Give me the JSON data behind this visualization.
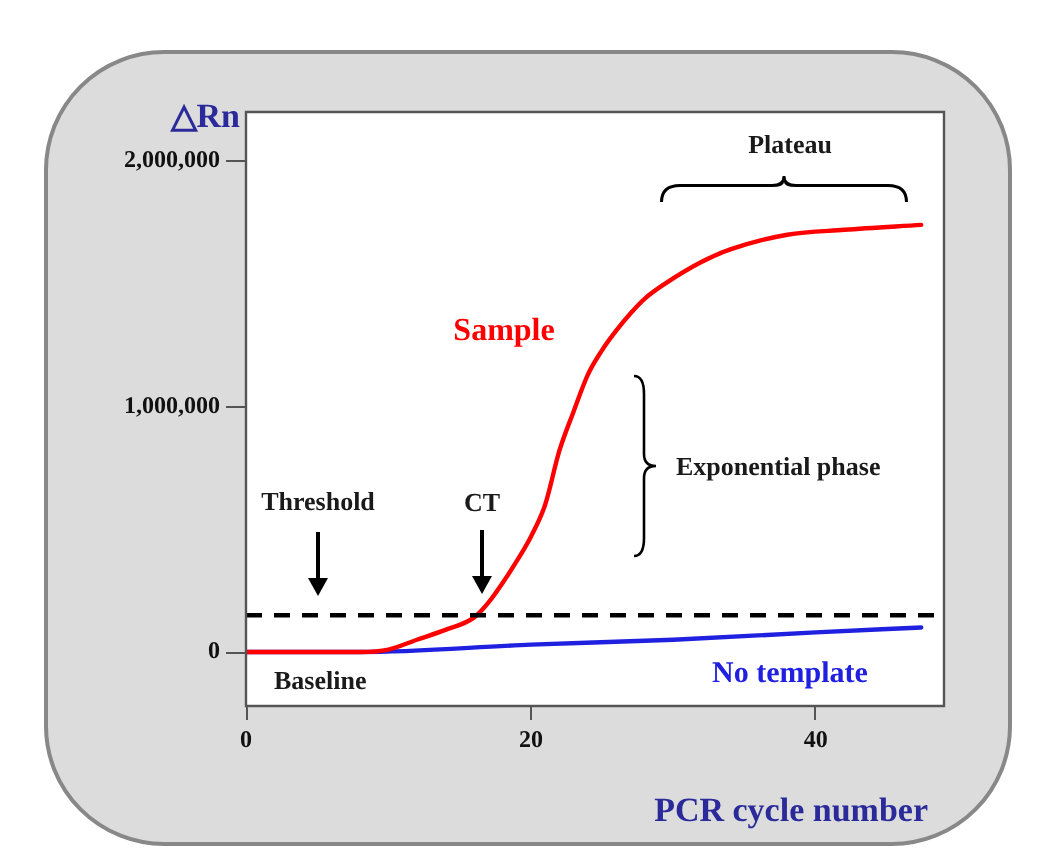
{
  "chart_data": {
    "type": "line",
    "xlabel": "PCR cycle number",
    "ylabel": "△Rn",
    "xlim": [
      0,
      49
    ],
    "xticks": [
      0,
      20,
      40
    ],
    "ylim": [
      -220000,
      2200000
    ],
    "yticks": [
      0,
      {
        "value": 1000000,
        "label": "1,000,000"
      },
      {
        "value": 2000000,
        "label": "2,000,000"
      }
    ],
    "grid": false,
    "legend": false,
    "marker": "none",
    "line_style": "solid",
    "series": [
      {
        "name": "Sample",
        "color": "#ff0000",
        "x": [
          0,
          8,
          10,
          12,
          14,
          16,
          17,
          18,
          19,
          20,
          21,
          22,
          23,
          24,
          25,
          26,
          27,
          28,
          29.4,
          32,
          34,
          38,
          42,
          47.4
        ],
        "values": [
          0,
          0,
          10000,
          50000,
          90000,
          140000,
          200000,
          280000,
          370000,
          470000,
          600000,
          820000,
          980000,
          1130000,
          1230000,
          1310000,
          1380000,
          1440000,
          1500000,
          1590000,
          1640000,
          1700000,
          1720000,
          1740000
        ]
      },
      {
        "name": "No template",
        "color": "#2020e0",
        "x": [
          0,
          8,
          20,
          30,
          40,
          47.4
        ],
        "values": [
          0,
          0,
          30000,
          50000,
          80000,
          100000
        ]
      }
    ],
    "ref_lines": [
      {
        "axis": "y",
        "value": 150000,
        "label": "Threshold",
        "line_style": "dashed",
        "color": "#000000"
      }
    ],
    "annotations": [
      "Plateau",
      "Exponential phase",
      "CT",
      "Baseline"
    ]
  }
}
